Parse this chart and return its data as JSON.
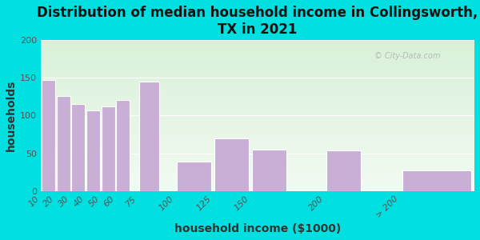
{
  "title": "Distribution of median household income in Collingsworth,\nTX in 2021",
  "xlabel": "household income ($1000)",
  "ylabel": "households",
  "categories": [
    "10",
    "20",
    "30",
    "40",
    "50",
    "60",
    "75",
    "100",
    "125",
    "150",
    "200",
    "> 200"
  ],
  "values": [
    147,
    126,
    115,
    107,
    112,
    121,
    145,
    39,
    70,
    55,
    54,
    27
  ],
  "bar_lefts": [
    10,
    20,
    30,
    40,
    50,
    60,
    75,
    100,
    125,
    150,
    200,
    250
  ],
  "bar_widths": [
    10,
    10,
    10,
    10,
    10,
    10,
    15,
    25,
    25,
    25,
    25,
    50
  ],
  "bar_color": "#c9aed6",
  "bar_edgecolor": "#ffffff",
  "background_outer": "#00e0e0",
  "background_plot_top": "#d8f0d8",
  "background_plot_bottom": "#f2faf2",
  "ylim": [
    0,
    200
  ],
  "yticks": [
    0,
    50,
    100,
    150,
    200
  ],
  "xlim": [
    10,
    300
  ],
  "xtick_positions": [
    10,
    20,
    30,
    40,
    50,
    60,
    75,
    100,
    125,
    150,
    200,
    250
  ],
  "xtick_labels": [
    "10",
    "20",
    "30",
    "40",
    "50",
    "60",
    "75",
    "100",
    "125",
    "150",
    "200",
    "> 200"
  ],
  "title_fontsize": 12,
  "axis_label_fontsize": 10,
  "tick_fontsize": 8,
  "watermark": "City-Data.com"
}
